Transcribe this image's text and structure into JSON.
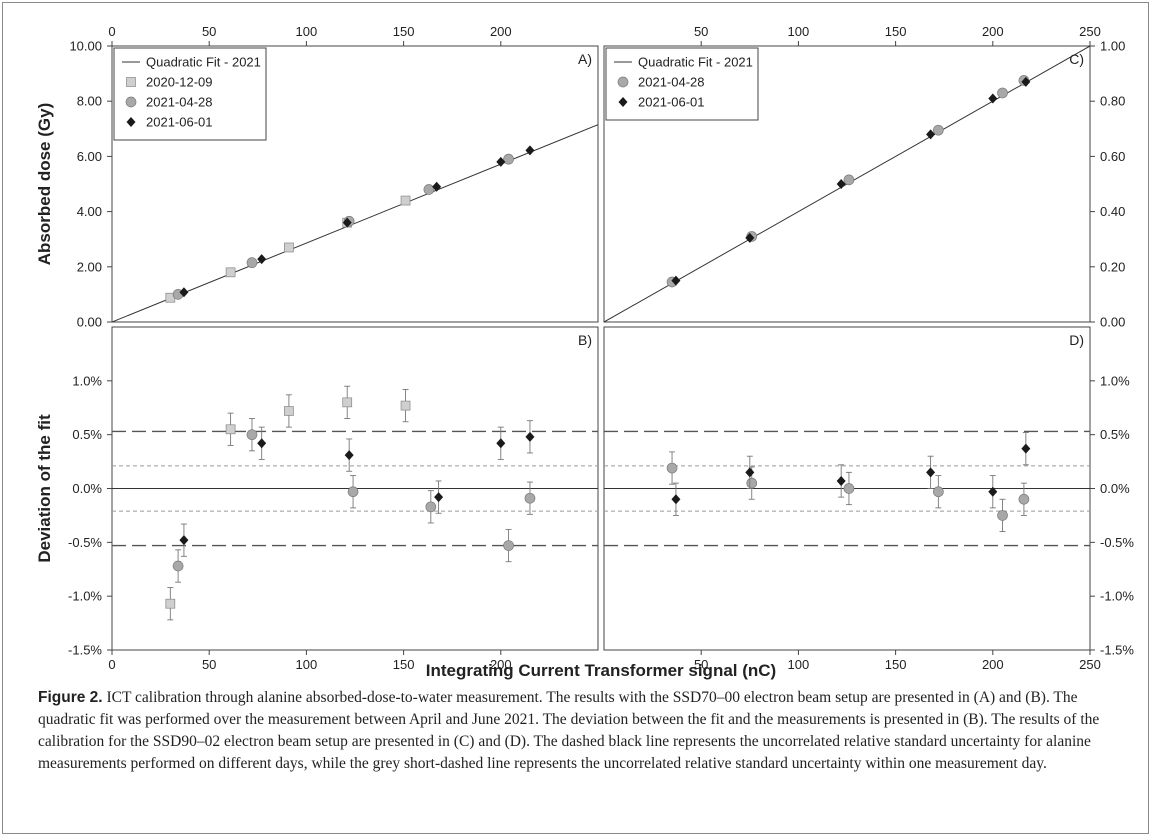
{
  "chart_data": [
    {
      "panel": "A",
      "panel_label": "A)",
      "type": "scatter",
      "ylabel": "Absorbed dose (Gy)",
      "xlim": [
        0,
        250
      ],
      "ylim": [
        0,
        10
      ],
      "xticks": [
        "0",
        "50",
        "100",
        "150",
        "200"
      ],
      "yticks": [
        "0.00",
        "2.00",
        "4.00",
        "6.00",
        "8.00",
        "10.00"
      ],
      "fit": {
        "name": "Quadratic Fit - 2021",
        "x": [
          0,
          250
        ],
        "y": [
          0,
          7.15
        ]
      },
      "series": [
        {
          "name": "2020-12-09",
          "marker": "square",
          "x": [
            30,
            61,
            91,
            121,
            151
          ],
          "y": [
            0.88,
            1.8,
            2.7,
            3.6,
            4.4
          ]
        },
        {
          "name": "2021-04-28",
          "marker": "circle",
          "x": [
            34,
            72,
            122,
            163,
            204
          ],
          "y": [
            1.0,
            2.15,
            3.65,
            4.8,
            5.9
          ]
        },
        {
          "name": "2021-06-01",
          "marker": "diamond",
          "x": [
            37,
            77,
            121,
            167,
            200,
            215
          ],
          "y": [
            1.08,
            2.28,
            3.6,
            4.9,
            5.8,
            6.22
          ]
        }
      ]
    },
    {
      "panel": "C",
      "panel_label": "C)",
      "type": "scatter",
      "xlim": [
        0,
        250
      ],
      "ylim": [
        0,
        1
      ],
      "xticks": [
        "50",
        "100",
        "150",
        "200",
        "250"
      ],
      "yticks": [
        "0.00",
        "0.20",
        "0.40",
        "0.60",
        "0.80",
        "1.00"
      ],
      "fit": {
        "name": "Quadratic Fit - 2021",
        "x": [
          0,
          250
        ],
        "y": [
          0,
          1.0
        ]
      },
      "series": [
        {
          "name": "2021-04-28",
          "marker": "circle",
          "x": [
            35,
            76,
            126,
            172,
            205,
            216
          ],
          "y": [
            0.145,
            0.31,
            0.515,
            0.695,
            0.83,
            0.875
          ]
        },
        {
          "name": "2021-06-01",
          "marker": "diamond",
          "x": [
            37,
            75,
            122,
            168,
            200,
            217
          ],
          "y": [
            0.15,
            0.305,
            0.5,
            0.68,
            0.81,
            0.87
          ]
        }
      ]
    },
    {
      "panel": "B",
      "panel_label": "B)",
      "type": "scatter",
      "ylabel": "Deviation of the fit",
      "xlim": [
        0,
        250
      ],
      "ylim": [
        -1.5,
        1.5
      ],
      "xticks": [
        "0",
        "50",
        "100",
        "150",
        "200"
      ],
      "yticks": [
        "-1.5%",
        "-1.0%",
        "-0.5%",
        "0.0%",
        "0.5%",
        "1.0%"
      ],
      "error_bar": 0.15,
      "reference_lines": {
        "zero": 0.0,
        "long_dash": [
          0.53,
          -0.53
        ],
        "short_dash": [
          0.21,
          -0.21
        ]
      },
      "series": [
        {
          "name": "2020-12-09",
          "marker": "square",
          "x": [
            30,
            61,
            91,
            121,
            151
          ],
          "y": [
            -1.07,
            0.55,
            0.72,
            0.8,
            0.77
          ]
        },
        {
          "name": "2021-04-28",
          "marker": "circle",
          "x": [
            34,
            72,
            124,
            164,
            204,
            215
          ],
          "y": [
            -0.72,
            0.5,
            -0.03,
            -0.17,
            -0.53,
            -0.09
          ]
        },
        {
          "name": "2021-06-01",
          "marker": "diamond",
          "x": [
            37,
            77,
            122,
            168,
            200,
            215
          ],
          "y": [
            -0.48,
            0.42,
            0.31,
            -0.08,
            0.42,
            0.48
          ]
        }
      ]
    },
    {
      "panel": "D",
      "panel_label": "D)",
      "type": "scatter",
      "xlim": [
        0,
        250
      ],
      "ylim": [
        -1.5,
        1.5
      ],
      "xticks": [
        "50",
        "100",
        "150",
        "200",
        "250"
      ],
      "yticks": [
        "-1.5%",
        "-1.0%",
        "-0.5%",
        "0.0%",
        "0.5%",
        "1.0%"
      ],
      "error_bar": 0.15,
      "reference_lines": {
        "zero": 0.0,
        "long_dash": [
          0.53,
          -0.53
        ],
        "short_dash": [
          0.21,
          -0.21
        ]
      },
      "series": [
        {
          "name": "2021-04-28",
          "marker": "circle",
          "x": [
            35,
            76,
            126,
            172,
            205,
            216
          ],
          "y": [
            0.19,
            0.05,
            0.0,
            -0.03,
            -0.25,
            -0.1
          ]
        },
        {
          "name": "2021-06-01",
          "marker": "diamond",
          "x": [
            37,
            75,
            122,
            168,
            200,
            217
          ],
          "y": [
            -0.1,
            0.15,
            0.07,
            0.15,
            -0.03,
            0.37
          ]
        }
      ]
    }
  ],
  "xlabel": "Integrating Current Transformer signal (nC)",
  "caption": {
    "label": "Figure 2.",
    "text": " ICT calibration through alanine absorbed-dose-to-water measurement. The results with the SSD70–00 electron beam setup are presented in (A) and (B). The quadratic fit was performed over the measurement between April and June 2021. The deviation between the fit and the measurements is presented in (B). The results of the calibration for the SSD90–02 electron beam setup are presented in (C) and (D). The dashed black line represents the uncorrelated relative standard uncertainty for alanine measurements performed on different days, while the grey short-dashed line represents the uncorrelated relative standard uncertainty within one measurement day."
  },
  "colors": {
    "square": "#cfcfcf",
    "circle": "#a8a8a8",
    "diamond": "#1a1a1a",
    "fit": "#333333",
    "short_dash": "#9a9a9a"
  }
}
